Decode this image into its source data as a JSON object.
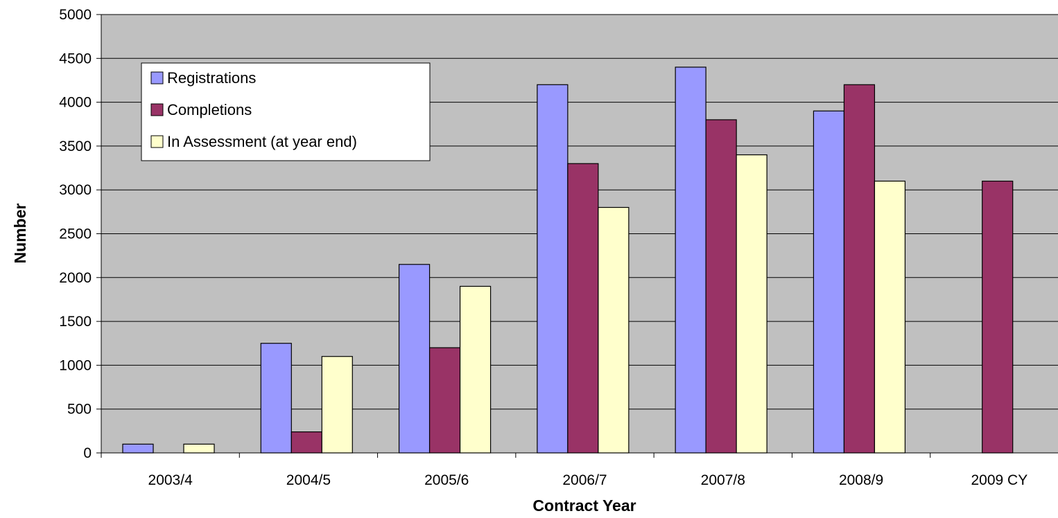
{
  "chart_data": {
    "type": "bar",
    "title": "",
    "xlabel": "Contract Year",
    "ylabel": "Number",
    "ylim": [
      0,
      5000
    ],
    "yticks": [
      0,
      500,
      1000,
      1500,
      2000,
      2500,
      3000,
      3500,
      4000,
      4500,
      5000
    ],
    "grid": true,
    "legend_position": "top-left",
    "plot_background": "#c0c0c0",
    "categories": [
      "2003/4",
      "2004/5",
      "2005/6",
      "2006/7",
      "2007/8",
      "2008/9",
      "2009 CY"
    ],
    "series": [
      {
        "name": "Registrations",
        "color": "#9999ff",
        "values": [
          100,
          1250,
          2150,
          4200,
          4400,
          3900,
          null
        ]
      },
      {
        "name": "Completions",
        "color": "#993366",
        "values": [
          null,
          240,
          1200,
          3300,
          3800,
          4200,
          3100
        ]
      },
      {
        "name": "In Assessment (at year end)",
        "color": "#ffffcc",
        "values": [
          100,
          1100,
          1900,
          2800,
          3400,
          3100,
          null
        ]
      }
    ]
  }
}
